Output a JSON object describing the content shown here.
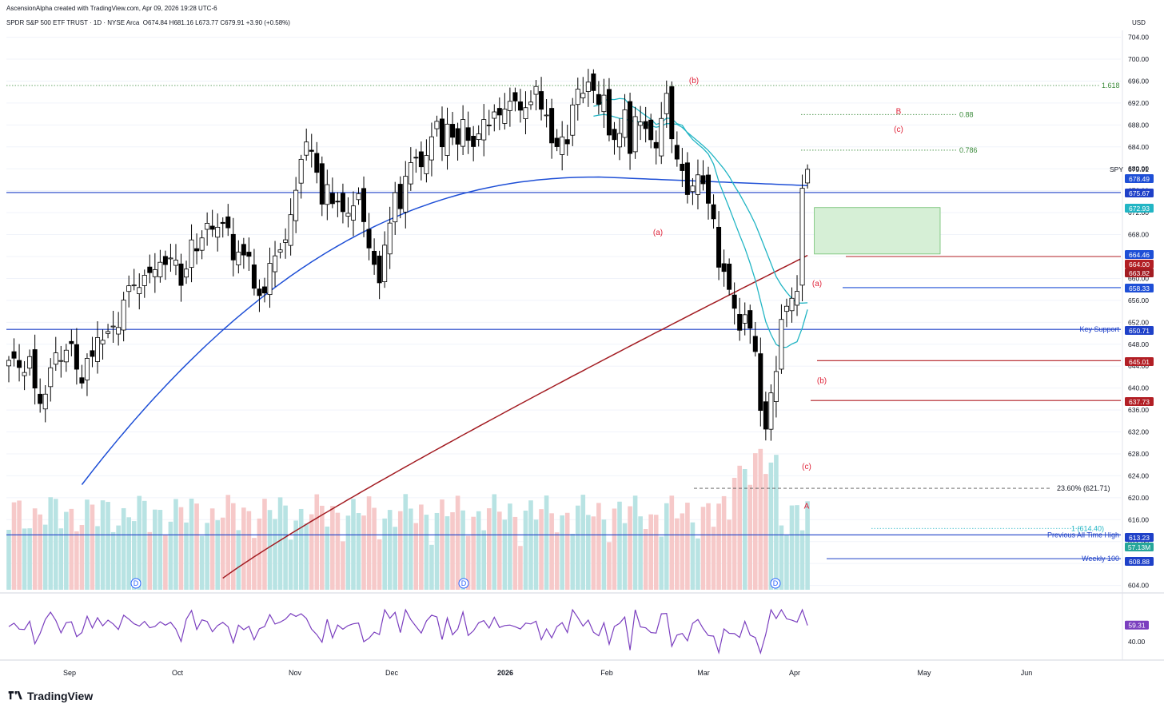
{
  "header": {
    "credit": "AscensionAlpha created with TradingView.com, Apr 09, 2026 19:28 UTC-6",
    "symbol_line": "SPDR S&P 500 ETF TRUST · 1D · NYSE Arca",
    "open": "O674.84",
    "high": "H681.16",
    "low": "L673.77",
    "close": "C679.91",
    "change": "+3.90 (+0.58%)",
    "currency": "USD"
  },
  "brand": "TradingView",
  "colors": {
    "up": "#ffffff",
    "down": "#000000",
    "blue_ma": "#1e4fd6",
    "cyan_ma": "#22b5c4",
    "red_ma": "#a31c22",
    "hline_blue": "#1e40c8",
    "hline_red": "#b21f25",
    "rsi": "#7b3fbf",
    "vol_up": "#b8e3e3",
    "vol_down": "#f6c9c9",
    "target_box": "#d6efd6"
  },
  "chart_data": {
    "type": "candlestick",
    "title": "SPDR S&P 500 ETF TRUST · 1D · NYSE Arca",
    "y_axis": {
      "ticks": [
        704,
        700,
        696,
        692,
        688,
        684,
        680,
        676,
        672,
        668,
        664,
        660,
        656,
        652,
        648,
        644,
        640,
        636,
        632,
        628,
        624,
        620,
        616,
        612,
        608,
        604
      ],
      "range": [
        603,
        705
      ],
      "currency": "USD"
    },
    "x_axis": {
      "labels": [
        "Sep",
        "Oct",
        "Nov",
        "Dec",
        "2026",
        "Feb",
        "Mar",
        "Apr",
        "May",
        "Jun"
      ]
    },
    "last_price": {
      "symbol": "SPY",
      "value": "679.91"
    },
    "price_tags": [
      {
        "value": 678.49,
        "text": "678.49",
        "color": "#1e4fd6"
      },
      {
        "value": 675.67,
        "text": "675.67",
        "color": "#1e40c8"
      },
      {
        "value": 672.93,
        "text": "672.93",
        "color": "#22b5c4"
      },
      {
        "value": 664.46,
        "text": "664.46",
        "color": "#1e4fd6"
      },
      {
        "value": 664.0,
        "text": "664.00",
        "color": "#b21f25"
      },
      {
        "value": 663.82,
        "text": "663.82",
        "color": "#a31c22"
      },
      {
        "value": 658.33,
        "text": "658.33",
        "color": "#1e4fd6"
      },
      {
        "value": 650.71,
        "text": "650.71",
        "color": "#1e40c8"
      },
      {
        "value": 645.01,
        "text": "645.01",
        "color": "#b21f25"
      },
      {
        "value": 637.73,
        "text": "637.73",
        "color": "#b21f25"
      },
      {
        "value": 613.23,
        "text": "613.23",
        "color": "#1e40c8"
      },
      {
        "value": 608.88,
        "text": "608.88",
        "color": "#1e40c8"
      }
    ],
    "volume_tag": {
      "text": "57.13M"
    },
    "horizontal_lines": [
      {
        "value": 675.67,
        "color": "#1e40c8",
        "label": ""
      },
      {
        "value": 650.71,
        "color": "#1e40c8",
        "label": "Key Support"
      },
      {
        "value": 664.0,
        "color": "#b21f25",
        "label": ""
      },
      {
        "value": 658.33,
        "color": "#1e4fd6",
        "label": ""
      },
      {
        "value": 645.01,
        "color": "#b21f25",
        "label": ""
      },
      {
        "value": 637.73,
        "color": "#b21f25",
        "label": ""
      },
      {
        "value": 613.23,
        "color": "#1e40c8",
        "label": "Previous All Time High"
      },
      {
        "value": 608.88,
        "color": "#1e40c8",
        "label": "Weekly 100"
      }
    ],
    "fib_levels": [
      {
        "value": 695.2,
        "label": "1.618"
      },
      {
        "value": 689.9,
        "label": "0.88"
      },
      {
        "value": 683.4,
        "label": "0.786"
      },
      {
        "value": 621.71,
        "label": "23.60% (621.71)"
      },
      {
        "value": 614.4,
        "label": "1 (614.40)"
      }
    ],
    "wave_labels": [
      {
        "text": "(b)",
        "date_index": 123,
        "value": 696.2
      },
      {
        "text": "B",
        "date_index": 158,
        "value": 690.6
      },
      {
        "text": "(c)",
        "date_index": 158,
        "value": 687.3
      },
      {
        "text": "(a)",
        "date_index": 115,
        "value": 668.5
      },
      {
        "text": "(a)",
        "date_index": 144,
        "value": 659.2
      },
      {
        "text": "(b)",
        "date_index": 144,
        "value": 641.5
      },
      {
        "text": "(c)",
        "date_index": 142,
        "value": 625.8
      },
      {
        "text": "A",
        "date_index": 142,
        "value": 618.6
      }
    ],
    "target_zone": {
      "from": 664.46,
      "to": 672.93
    },
    "dividend_markers": [
      "D",
      "D",
      "D"
    ],
    "rsi": {
      "last": "59.31",
      "ticks": [
        "40.00"
      ]
    },
    "series": {
      "closes": [
        645.05,
        645.45,
        643.75,
        642.84,
        645.74,
        640.0,
        637.18,
        638.89,
        643.71,
        646.42,
        645.02,
        646.91,
        648.11,
        643.44,
        640.91,
        645.42,
        645.77,
        649.22,
        648.72,
        650.31,
        651.31,
        651.06,
        656.05,
        658.66,
        658.8,
        658.34,
        660.58,
        661.05,
        661.61,
        662.95,
        662.53,
        663.73,
        663.34,
        658.73,
        661.71,
        667.03,
        665.03,
        667.39,
        670.06,
        668.96,
        669.34,
        670.03,
        669.23,
        663.37,
        664.79,
        664.27,
        664.04,
        658.21,
        656.87,
        657.34,
        662.75,
        664.12,
        665.21,
        667.05,
        671.63,
        676.08,
        681.73,
        684.89,
        683.18,
        679.35,
        673.55,
        677.11,
        673.64,
        674.06,
        672.18,
        671.88,
        673.23,
        675.46,
        670.35,
        665.56,
        662.55,
        659.2,
        666.07,
        670.1,
        675.65,
        672.72,
        678.63,
        681.13,
        681.97,
        680.37,
        682.43,
        685.84,
        688.66,
        684.02,
        688.15,
        685.75,
        684.49,
        688.99,
        685.18,
        684.05,
        686.38,
        688.99,
        687.85,
        690.38,
        689.81,
        690.88,
        692.31,
        692.37,
        690.69,
        691.15,
        692.17,
        695.02,
        690.86,
        689.81,
        684.72,
        684.04,
        685.82,
        684.55,
        691.65,
        694.54,
        693.77,
        695.81,
        694.27,
        691.76,
        693.43,
        686.16,
        685.32,
        686.44,
        690.76,
        682.79,
        689.52,
        688.54,
        687.33,
        685.3,
        683.8,
        689.18,
        693.76,
        685.47,
        681.77,
        679.67,
        675.3,
        676.86,
        678.9,
        677.27,
        673.71,
        670.87,
        662.04,
        661.27,
        657.99,
        654.55,
        650.55,
        653.38,
        650.93,
        646.66,
        635.92,
        632.51,
        639.12,
        643.02,
        652.52,
        654.93,
        656.38,
        657.64,
        676.45,
        679.91
      ]
    }
  }
}
